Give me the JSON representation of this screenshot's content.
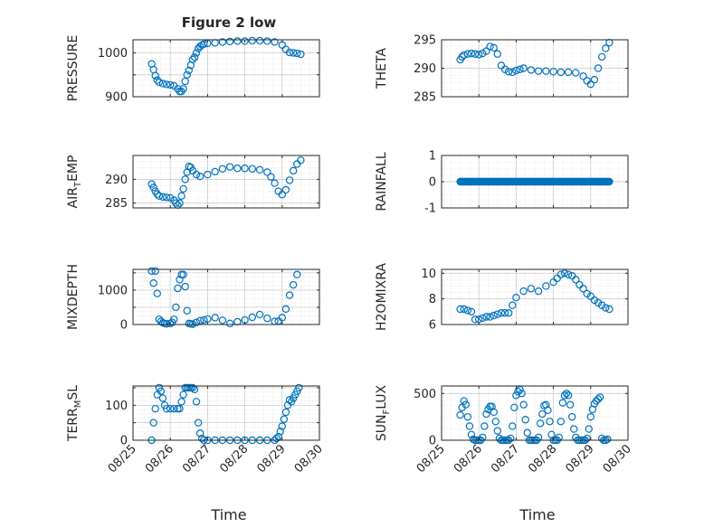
{
  "figure": {
    "title": "Figure 2 low",
    "marker_color": "#0072BD",
    "xlabel": "Time",
    "x_ticks": [
      "08/25",
      "08/26",
      "08/27",
      "08/28",
      "08/29",
      "08/30"
    ]
  },
  "chart_data": [
    {
      "type": "scatter",
      "name": "pressure",
      "ylabel": "PRESSURE",
      "ylabel_sub": "",
      "ylim": [
        900,
        1030
      ],
      "yticks": [
        900,
        950,
        1000
      ],
      "ytick_labels": [
        "900",
        "",
        "1000"
      ],
      "grid": true,
      "minor_grid": true,
      "x_range_days": [
        25,
        30
      ],
      "x": [
        25.5,
        25.55,
        25.6,
        25.65,
        25.7,
        25.8,
        25.9,
        26.0,
        26.1,
        26.2,
        26.25,
        26.3,
        26.35,
        26.4,
        26.45,
        26.5,
        26.55,
        26.6,
        26.65,
        26.7,
        26.75,
        26.8,
        26.85,
        26.9,
        27.0,
        27.2,
        27.4,
        27.6,
        27.8,
        28.0,
        28.2,
        28.4,
        28.6,
        28.8,
        29.0,
        29.1,
        29.2,
        29.3,
        29.4,
        29.5
      ],
      "y": [
        975,
        962,
        948,
        938,
        933,
        930,
        928,
        927,
        925,
        918,
        912,
        912,
        918,
        935,
        950,
        960,
        972,
        985,
        990,
        1000,
        1010,
        1015,
        1018,
        1020,
        1022,
        1023,
        1025,
        1026,
        1027,
        1027,
        1028,
        1028,
        1027,
        1025,
        1018,
        1008,
        1001,
        1000,
        999,
        997
      ]
    },
    {
      "type": "scatter",
      "name": "theta",
      "ylabel": "THETA",
      "ylabel_sub": "",
      "ylim": [
        285,
        295
      ],
      "yticks": [
        285,
        290,
        295
      ],
      "ytick_labels": [
        "285",
        "290",
        "295"
      ],
      "grid": true,
      "minor_grid": true,
      "x_range_days": [
        25,
        30
      ],
      "x": [
        25.5,
        25.55,
        25.6,
        25.7,
        25.8,
        25.9,
        26.0,
        26.1,
        26.2,
        26.3,
        26.4,
        26.5,
        26.6,
        26.7,
        26.8,
        26.9,
        27.0,
        27.1,
        27.2,
        27.4,
        27.6,
        27.8,
        28.0,
        28.2,
        28.4,
        28.6,
        28.8,
        28.9,
        29.0,
        29.1,
        29.2,
        29.3,
        29.4,
        29.5
      ],
      "y": [
        291.5,
        292.0,
        292.3,
        292.5,
        292.6,
        292.5,
        292.4,
        292.6,
        293.0,
        293.8,
        293.6,
        292.5,
        290.5,
        289.8,
        289.4,
        289.3,
        289.6,
        289.8,
        290.0,
        289.7,
        289.5,
        289.5,
        289.4,
        289.3,
        289.3,
        289.2,
        288.6,
        287.8,
        287.2,
        288.0,
        290.0,
        292.0,
        293.5,
        294.5
      ]
    },
    {
      "type": "scatter",
      "name": "air_temp",
      "ylabel": "AIR",
      "ylabel_sub": "T",
      "ylabel_suffix": "EMP",
      "ylim": [
        284,
        295
      ],
      "yticks": [
        285,
        290
      ],
      "ytick_labels": [
        "285",
        "290"
      ],
      "grid": true,
      "minor_grid": true,
      "x_range_days": [
        25,
        30
      ],
      "x": [
        25.5,
        25.55,
        25.6,
        25.65,
        25.7,
        25.8,
        25.9,
        26.0,
        26.1,
        26.15,
        26.2,
        26.25,
        26.3,
        26.35,
        26.4,
        26.45,
        26.5,
        26.55,
        26.6,
        26.7,
        26.8,
        27.0,
        27.2,
        27.4,
        27.6,
        27.8,
        28.0,
        28.2,
        28.4,
        28.6,
        28.7,
        28.8,
        28.9,
        29.0,
        29.1,
        29.2,
        29.3,
        29.4,
        29.5
      ],
      "y": [
        289.0,
        288.3,
        287.5,
        286.9,
        286.5,
        286.3,
        286.2,
        286.1,
        285.6,
        285.0,
        284.6,
        285.0,
        286.5,
        288.0,
        290.0,
        291.5,
        292.7,
        292.5,
        291.8,
        291.0,
        290.6,
        291.0,
        291.6,
        292.2,
        292.6,
        292.3,
        292.3,
        292.2,
        292.0,
        291.5,
        290.5,
        289.2,
        287.5,
        286.8,
        287.8,
        289.8,
        291.8,
        293.2,
        294.0
      ]
    },
    {
      "type": "scatter",
      "name": "rainfall",
      "ylabel": "RAINFALL",
      "ylabel_sub": "",
      "ylim": [
        -1,
        1
      ],
      "yticks": [
        -1,
        0,
        1
      ],
      "ytick_labels": [
        "-1",
        "0",
        "1"
      ],
      "grid": true,
      "minor_grid": true,
      "x_range_days": [
        25,
        30
      ],
      "x_span": [
        25.5,
        29.5
      ],
      "constant_y": 0
    },
    {
      "type": "scatter",
      "name": "mixdepth",
      "ylabel": "MIXDEPTH",
      "ylabel_sub": "",
      "ylim": [
        0,
        1600
      ],
      "yticks": [
        0,
        500,
        1000,
        1500
      ],
      "ytick_labels": [
        "0",
        "",
        "1000",
        ""
      ],
      "grid": true,
      "minor_grid": true,
      "x_range_days": [
        25,
        30
      ],
      "x": [
        25.5,
        25.55,
        25.6,
        25.65,
        25.7,
        25.75,
        25.8,
        25.85,
        25.9,
        26.0,
        26.05,
        26.1,
        26.15,
        26.2,
        26.25,
        26.3,
        26.35,
        26.4,
        26.45,
        26.5,
        26.55,
        26.6,
        26.7,
        26.8,
        26.9,
        27.0,
        27.2,
        27.4,
        27.6,
        27.8,
        28.0,
        28.2,
        28.4,
        28.6,
        28.8,
        28.9,
        29.0,
        29.1,
        29.2,
        29.3,
        29.4
      ],
      "y": [
        1550,
        1200,
        1550,
        900,
        150,
        90,
        50,
        30,
        20,
        30,
        60,
        150,
        500,
        1050,
        1300,
        1450,
        1450,
        1100,
        400,
        30,
        20,
        10,
        60,
        110,
        130,
        160,
        200,
        120,
        30,
        80,
        130,
        210,
        290,
        180,
        90,
        100,
        200,
        450,
        850,
        1150,
        1450
      ]
    },
    {
      "type": "scatter",
      "name": "h2omixra",
      "ylabel": "H2OMIXRA",
      "ylabel_sub": "",
      "ylim": [
        6,
        10.3
      ],
      "yticks": [
        6,
        8,
        10
      ],
      "ytick_labels": [
        "6",
        "8",
        "10"
      ],
      "grid": true,
      "minor_grid": true,
      "x_range_days": [
        25,
        30
      ],
      "x": [
        25.5,
        25.6,
        25.7,
        25.8,
        25.9,
        26.0,
        26.1,
        26.2,
        26.3,
        26.4,
        26.5,
        26.6,
        26.7,
        26.8,
        26.9,
        27.0,
        27.2,
        27.4,
        27.6,
        27.8,
        28.0,
        28.1,
        28.2,
        28.3,
        28.4,
        28.5,
        28.6,
        28.7,
        28.8,
        28.9,
        29.0,
        29.1,
        29.2,
        29.3,
        29.4,
        29.5
      ],
      "y": [
        7.2,
        7.2,
        7.1,
        7.0,
        6.4,
        6.4,
        6.5,
        6.6,
        6.6,
        6.7,
        6.8,
        6.9,
        6.9,
        6.9,
        7.5,
        8.1,
        8.6,
        8.8,
        8.6,
        9.0,
        9.3,
        9.6,
        9.9,
        10.0,
        9.9,
        9.8,
        9.5,
        9.1,
        8.8,
        8.4,
        8.2,
        7.9,
        7.7,
        7.5,
        7.3,
        7.2
      ]
    },
    {
      "type": "scatter",
      "name": "terr_msl",
      "ylabel": "TERR",
      "ylabel_sub": "M",
      "ylabel_suffix": "SL",
      "ylim": [
        0,
        155
      ],
      "yticks": [
        0,
        50,
        100,
        150
      ],
      "ytick_labels": [
        "0",
        "",
        "100",
        ""
      ],
      "grid": true,
      "minor_grid": true,
      "x_range_days": [
        25,
        30
      ],
      "x": [
        25.5,
        25.55,
        25.6,
        25.65,
        25.7,
        25.75,
        25.8,
        25.85,
        25.9,
        26.0,
        26.1,
        26.2,
        26.25,
        26.3,
        26.35,
        26.4,
        26.45,
        26.5,
        26.55,
        26.6,
        26.65,
        26.7,
        26.75,
        26.8,
        26.85,
        26.9,
        27.0,
        27.2,
        27.4,
        27.6,
        27.8,
        28.0,
        28.2,
        28.4,
        28.6,
        28.8,
        28.85,
        28.9,
        28.95,
        29.0,
        29.05,
        29.1,
        29.15,
        29.2,
        29.25,
        29.3,
        29.35,
        29.4,
        29.45
      ],
      "y": [
        0,
        50,
        90,
        130,
        150,
        140,
        120,
        100,
        90,
        90,
        90,
        90,
        90,
        110,
        130,
        150,
        150,
        150,
        150,
        150,
        145,
        110,
        50,
        20,
        5,
        0,
        0,
        0,
        0,
        0,
        0,
        0,
        0,
        0,
        0,
        0,
        5,
        10,
        25,
        40,
        60,
        80,
        100,
        115,
        110,
        120,
        130,
        140,
        150
      ]
    },
    {
      "type": "scatter",
      "name": "sun_flux",
      "ylabel": "SUN",
      "ylabel_sub": "F",
      "ylabel_suffix": "LUX",
      "ylim": [
        0,
        580
      ],
      "yticks": [
        0,
        500
      ],
      "ytick_labels": [
        "0",
        "500"
      ],
      "grid": true,
      "minor_grid": true,
      "x_range_days": [
        25,
        30
      ],
      "x": [
        25.5,
        25.55,
        25.6,
        25.65,
        25.7,
        25.75,
        25.8,
        25.85,
        25.9,
        25.95,
        26.0,
        26.05,
        26.1,
        26.15,
        26.2,
        26.25,
        26.3,
        26.35,
        26.4,
        26.45,
        26.5,
        26.55,
        26.6,
        26.65,
        26.7,
        26.75,
        26.8,
        26.85,
        26.9,
        26.95,
        27.0,
        27.05,
        27.1,
        27.15,
        27.2,
        27.25,
        27.3,
        27.35,
        27.4,
        27.45,
        27.5,
        27.55,
        27.6,
        27.65,
        27.7,
        27.75,
        27.8,
        27.85,
        27.9,
        27.95,
        28.0,
        28.05,
        28.1,
        28.15,
        28.2,
        28.25,
        28.3,
        28.35,
        28.4,
        28.45,
        28.5,
        28.55,
        28.6,
        28.65,
        28.7,
        28.75,
        28.8,
        28.85,
        28.9,
        28.95,
        29.0,
        29.05,
        29.1,
        29.15,
        29.2,
        29.25,
        29.3,
        29.35,
        29.4,
        29.45
      ],
      "y": [
        270,
        350,
        420,
        380,
        250,
        150,
        60,
        10,
        0,
        0,
        0,
        0,
        30,
        150,
        280,
        330,
        360,
        360,
        300,
        200,
        100,
        20,
        0,
        0,
        0,
        0,
        0,
        20,
        150,
        350,
        480,
        520,
        540,
        500,
        380,
        220,
        80,
        0,
        0,
        0,
        0,
        0,
        30,
        180,
        280,
        370,
        380,
        320,
        200,
        60,
        0,
        0,
        0,
        30,
        200,
        400,
        480,
        500,
        480,
        380,
        250,
        120,
        30,
        0,
        0,
        0,
        0,
        0,
        20,
        120,
        250,
        330,
        390,
        420,
        440,
        460,
        20,
        0,
        0,
        10
      ]
    }
  ]
}
